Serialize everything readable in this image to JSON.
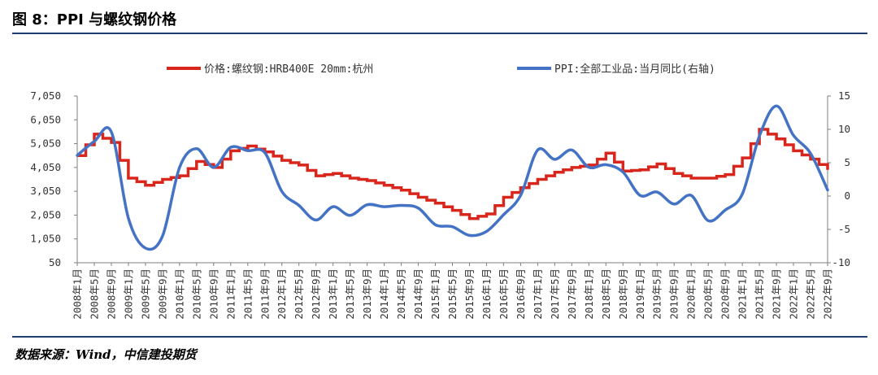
{
  "header": {
    "title": "图 8：PPI 与螺纹钢价格"
  },
  "footer": {
    "source": "数据来源：Wind，中信建投期货"
  },
  "chart_data": {
    "type": "line",
    "title": "",
    "colors": {
      "price": "#d9261c",
      "ppi": "#4472c4",
      "rule": "#1f3f73",
      "axis": "#7f7f7f"
    },
    "legend": {
      "position": "top",
      "items": [
        {
          "name": "价格:螺纹钢:HRB400E 20mm:杭州",
          "color": "#d9261c",
          "axis": "left"
        },
        {
          "name": "PPI:全部工业品:当月同比(右轴)",
          "color": "#4472c4",
          "axis": "right"
        }
      ]
    },
    "left_axis": {
      "range": [
        50,
        7050
      ],
      "ticks": [
        "7,050",
        "6,050",
        "5,050",
        "4,050",
        "3,050",
        "2,050",
        "1,050",
        "50"
      ]
    },
    "right_axis": {
      "range": [
        -10,
        15
      ],
      "ticks": [
        "15",
        "10",
        "5",
        "0",
        "-5",
        "-10"
      ]
    },
    "x_labels": [
      "2008年1月",
      "2008年5月",
      "2008年9月",
      "2009年1月",
      "2009年5月",
      "2009年9月",
      "2010年1月",
      "2010年5月",
      "2010年9月",
      "2011年1月",
      "2011年5月",
      "2011年9月",
      "2012年1月",
      "2012年5月",
      "2012年9月",
      "2013年1月",
      "2013年5月",
      "2013年9月",
      "2014年1月",
      "2014年5月",
      "2014年9月",
      "2015年1月",
      "2015年5月",
      "2015年9月",
      "2016年1月",
      "2016年5月",
      "2016年9月",
      "2017年1月",
      "2017年5月",
      "2017年9月",
      "2018年1月",
      "2018年5月",
      "2018年9月",
      "2019年1月",
      "2019年5月",
      "2019年9月",
      "2020年1月",
      "2020年5月",
      "2020年9月",
      "2021年1月",
      "2021年5月",
      "2021年9月",
      "2022年1月",
      "2022年5月",
      "2022年9月"
    ],
    "series": [
      {
        "name": "价格:螺纹钢:HRB400E 20mm:杭州",
        "axis": "left",
        "x_step": "4 months",
        "values": [
          4550,
          5450,
          5100,
          3600,
          3300,
          3550,
          3700,
          4300,
          4050,
          4750,
          4950,
          4700,
          4350,
          4150,
          3700,
          3800,
          3600,
          3500,
          3300,
          3100,
          2800,
          2550,
          2250,
          1900,
          2100,
          2800,
          3200,
          3550,
          3850,
          4050,
          4150,
          4650,
          3900,
          3950,
          4200,
          3800,
          3600,
          3600,
          3750,
          4450,
          5650,
          5250,
          4750,
          4400,
          3950
        ]
      },
      {
        "name": "PPI:全部工业品:当月同比(右轴)",
        "axis": "right",
        "x_step": "4 months",
        "values": [
          6.1,
          8.2,
          9.6,
          -3.3,
          -7.8,
          -6.0,
          4.3,
          7.1,
          4.3,
          7.3,
          6.8,
          6.5,
          0.7,
          -1.4,
          -3.6,
          -1.6,
          -2.9,
          -1.3,
          -1.6,
          -1.4,
          -1.8,
          -4.3,
          -4.6,
          -5.9,
          -5.3,
          -2.8,
          0.1,
          6.9,
          5.5,
          6.9,
          4.3,
          4.7,
          3.6,
          0.1,
          0.6,
          -1.2,
          0.1,
          -3.7,
          -2.1,
          0.3,
          9.0,
          13.5,
          9.1,
          6.4,
          0.9
        ]
      }
    ]
  }
}
